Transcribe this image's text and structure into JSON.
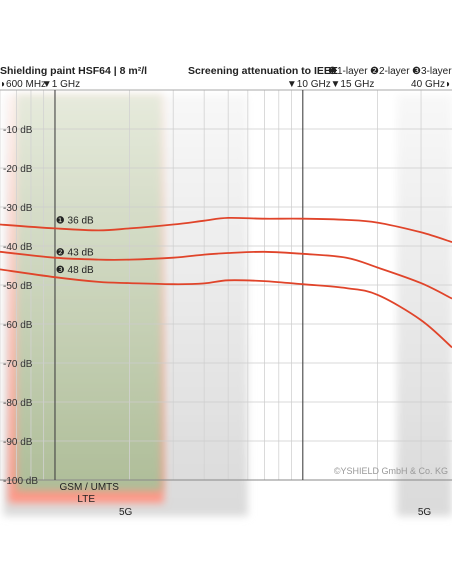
{
  "header": {
    "left_title": "Shielding paint HSF64 | 8 m²/l",
    "right_title_prefix": "Screening attenuation to IEEE",
    "layer_labels": [
      "❶1-layer",
      "❷2-layer",
      "❸3-layer"
    ]
  },
  "chart_data": {
    "type": "line",
    "x_scale": "log",
    "x_unit": "GHz",
    "xlim": [
      0.6,
      40
    ],
    "ylim": [
      -100,
      0
    ],
    "y_ticks": [
      -10,
      -20,
      -30,
      -40,
      -50,
      -60,
      -70,
      -80,
      -90,
      -100
    ],
    "y_tick_labels": [
      "-10 dB",
      "-20 dB",
      "-30 dB",
      "-40 dB",
      "-50 dB",
      "-60 dB",
      "-70 dB",
      "-80 dB",
      "-90 dB",
      "-100 dB"
    ],
    "x_markers": [
      {
        "label": "◗600 MHz",
        "x": 0.6,
        "anchor": "start"
      },
      {
        "label": "▼1 GHz",
        "x": 1,
        "anchor": "middle"
      },
      {
        "label": "▼10 GHz",
        "x": 10,
        "anchor": "middle"
      },
      {
        "label": "▼15 GHz",
        "x": 15,
        "anchor": "middle"
      },
      {
        "label": "40 GHz◗",
        "x": 40,
        "anchor": "end"
      }
    ],
    "vertical_lines_x": [
      1,
      10
    ],
    "series": [
      {
        "name": "❶ 36 dB",
        "color": "#e0442a",
        "x": [
          0.6,
          1,
          1.5,
          2,
          3,
          4,
          5,
          7,
          10,
          15,
          20,
          30,
          40
        ],
        "y": [
          -34.5,
          -35.5,
          -36,
          -35.5,
          -34.5,
          -33.5,
          -32.8,
          -33,
          -33,
          -33.3,
          -34,
          -36.5,
          -39
        ]
      },
      {
        "name": "❷ 43 dB",
        "color": "#e0442a",
        "x": [
          0.6,
          1,
          1.5,
          2,
          3,
          4,
          5,
          7,
          10,
          15,
          20,
          30,
          40
        ],
        "y": [
          -41.5,
          -43,
          -43.5,
          -43.5,
          -43,
          -42.2,
          -41.8,
          -41.5,
          -42,
          -43,
          -45.5,
          -49.5,
          -53.5
        ]
      },
      {
        "name": "❸ 48 dB",
        "color": "#e0442a",
        "x": [
          0.6,
          1,
          1.5,
          2,
          3,
          4,
          5,
          7,
          10,
          15,
          20,
          30,
          40
        ],
        "y": [
          -46,
          -48,
          -49.2,
          -49.5,
          -49.8,
          -49.6,
          -48.8,
          -49,
          -49.8,
          -50.8,
          -52.5,
          -59,
          -66
        ]
      }
    ],
    "bands": [
      {
        "label": "GSM / UMTS",
        "range": [
          0.7,
          2.7
        ],
        "color": "#a9b894"
      },
      {
        "label": "LTE",
        "range": [
          0.65,
          2.75
        ],
        "color": "#ff9c8c"
      },
      {
        "label": "5G",
        "range": [
          0.62,
          6
        ],
        "color": "#dcdcdc"
      },
      {
        "label": "5G",
        "range": [
          24,
          40
        ],
        "color": "#dcdcdc"
      }
    ],
    "copyright": "©YSHIELD GmbH & Co. KG",
    "grid": true
  }
}
